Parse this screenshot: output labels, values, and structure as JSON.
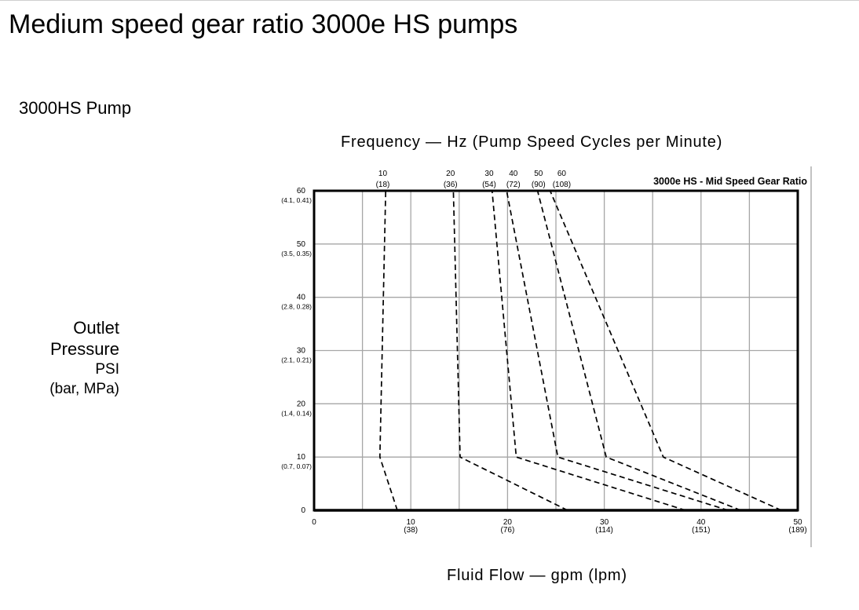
{
  "page": {
    "title": "Medium speed gear ratio 3000e HS pumps",
    "subtitle": "3000HS Pump",
    "frequency_title": "Frequency — Hz (Pump Speed Cycles per Minute)",
    "flow_title": "Fluid Flow — gpm (lpm)",
    "ylabel": {
      "line1": "Outlet",
      "line2": "Pressure",
      "line3": "PSI",
      "line4": "(bar, MPa)"
    }
  },
  "chart_data": {
    "type": "line",
    "title": "3000e HS - Mid Speed Gear Ratio",
    "xlim": [
      0,
      50
    ],
    "ylim": [
      0,
      60
    ],
    "grid": true,
    "x_ticks": [
      {
        "value": 0,
        "label": "0",
        "sub": ""
      },
      {
        "value": 10,
        "label": "10",
        "sub": "(38)"
      },
      {
        "value": 20,
        "label": "20",
        "sub": "(76)"
      },
      {
        "value": 30,
        "label": "30",
        "sub": "(114)"
      },
      {
        "value": 40,
        "label": "40",
        "sub": "(151)"
      },
      {
        "value": 50,
        "label": "50",
        "sub": "(189)"
      }
    ],
    "y_ticks": [
      {
        "value": 0,
        "label": "0",
        "sub": ""
      },
      {
        "value": 10,
        "label": "10",
        "sub": "(0.7, 0.07)"
      },
      {
        "value": 20,
        "label": "20",
        "sub": "(1.4, 0.14)"
      },
      {
        "value": 30,
        "label": "30",
        "sub": "(2.1, 0.21)"
      },
      {
        "value": 40,
        "label": "40",
        "sub": "(2.8, 0.28)"
      },
      {
        "value": 50,
        "label": "50",
        "sub": "(3.5, 0.35)"
      },
      {
        "value": 60,
        "label": "60",
        "sub": "(4.1, 0.41)"
      }
    ],
    "series": [
      {
        "name": "10",
        "sub": "(18)",
        "label_x": 7.1,
        "x": [
          8.6,
          6.8,
          7.4
        ],
        "y": [
          0,
          10,
          60
        ]
      },
      {
        "name": "20",
        "sub": "(36)",
        "label_x": 14.1,
        "x": [
          26.2,
          15.1,
          14.4
        ],
        "y": [
          0,
          10,
          60
        ]
      },
      {
        "name": "30",
        "sub": "(54)",
        "label_x": 18.1,
        "x": [
          38.4,
          20.9,
          18.4
        ],
        "y": [
          0,
          10,
          60
        ]
      },
      {
        "name": "40",
        "sub": "(72)",
        "label_x": 20.6,
        "x": [
          42.8,
          25.2,
          19.9
        ],
        "y": [
          0,
          10,
          60
        ]
      },
      {
        "name": "50",
        "sub": "(90)",
        "label_x": 23.2,
        "x": [
          44.1,
          30.2,
          23.1
        ],
        "y": [
          0,
          10,
          60
        ]
      },
      {
        "name": "60",
        "sub": "(108)",
        "label_x": 25.6,
        "x": [
          48.3,
          36.1,
          24.4
        ],
        "y": [
          0,
          10,
          60
        ]
      }
    ],
    "series_style": {
      "color": "#000000",
      "dash": "dashed"
    },
    "grid_color": "#a6a6a6",
    "frame_color": "#000000"
  }
}
